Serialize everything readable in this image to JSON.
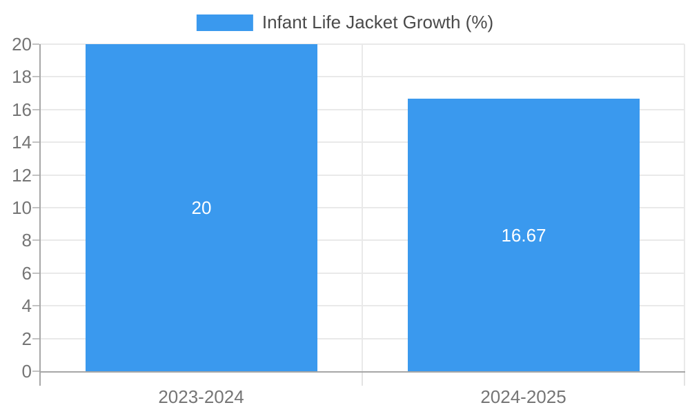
{
  "legend": {
    "label": "Infant Life Jacket Growth (%)"
  },
  "chart_data": {
    "type": "bar",
    "title": "",
    "categories": [
      "2023-2024",
      "2024-2025"
    ],
    "series": [
      {
        "name": "Infant Life Jacket Growth (%)",
        "color": "#3a99ee",
        "values": [
          20,
          16.67
        ],
        "value_labels": [
          "20",
          "16.67"
        ]
      }
    ],
    "ylim": [
      0,
      20
    ],
    "yticks": [
      0,
      2,
      4,
      6,
      8,
      10,
      12,
      14,
      16,
      18,
      20
    ],
    "grid": true,
    "legend_position": "top-center",
    "value_label_position": "inside-center",
    "value_label_color": "#ffffff"
  },
  "colors": {
    "bar": "#3a99ee",
    "background": "#ffffff",
    "gridline": "#e9e9e9",
    "axis_line": "#a6a6a6",
    "tick_mark": "#c2c2c2",
    "x_tick_mark": "#e3e3e3",
    "tick_label": "#757575",
    "legend_text": "#4a4a4a"
  }
}
